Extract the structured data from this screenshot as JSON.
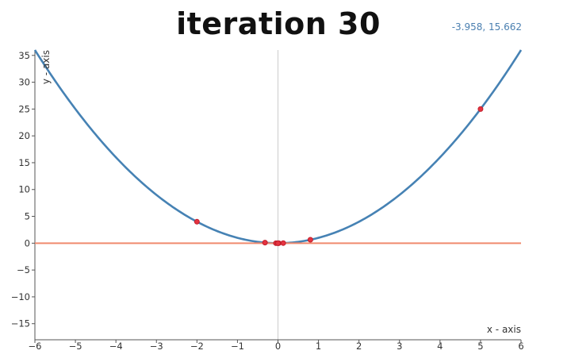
{
  "title": "iteration 30",
  "coordinate_readout": "-3.958, 15.662",
  "colors": {
    "curve": "#4682b4",
    "zero_line": "#f08a6e",
    "points": "#e53340",
    "center_axis": "#cccccc"
  },
  "chart_data": {
    "type": "line",
    "title": "iteration 30",
    "xlabel": "x - axis",
    "ylabel": "y - axis",
    "xlim": [
      -6,
      6
    ],
    "ylim": [
      -18,
      36
    ],
    "x_ticks": [
      "-6",
      "-5",
      "-4",
      "-3",
      "-2",
      "-1",
      "0",
      "1",
      "2",
      "3",
      "4",
      "5",
      "6"
    ],
    "y_ticks": [
      "35",
      "30",
      "25",
      "20",
      "15",
      "10",
      "5",
      "0",
      "-5",
      "-10",
      "-15"
    ],
    "grid": false,
    "series": [
      {
        "kind": "function",
        "expression": "y = x^2",
        "x_start": -6,
        "x_end": 6
      },
      {
        "kind": "line",
        "expression": "y = 0",
        "x_start": -6,
        "x_end": 6
      },
      {
        "kind": "scatter",
        "points": [
          {
            "x": 5,
            "y": 25
          },
          {
            "x": -2,
            "y": 4
          },
          {
            "x": 0.8,
            "y": 0.64
          },
          {
            "x": -0.32,
            "y": 0.1
          },
          {
            "x": 0.13,
            "y": 0.02
          },
          {
            "x": -0.05,
            "y": 0.0
          },
          {
            "x": 0.02,
            "y": 0.0
          },
          {
            "x": -0.01,
            "y": 0.0
          },
          {
            "x": 0.0,
            "y": 0.0
          }
        ]
      }
    ]
  }
}
